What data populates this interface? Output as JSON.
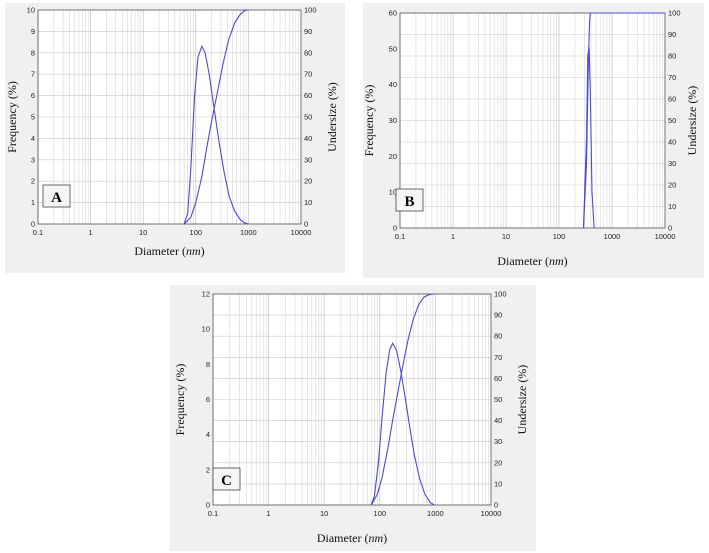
{
  "chart_data": [
    {
      "type": "line",
      "panel_label": "A",
      "xlabel": "Diameter",
      "xlabel_unit": "nm",
      "ylabel_left": "Frequency (%)",
      "ylabel_right": "Undersize (%)",
      "x_scale": "log",
      "xlim": [
        0.1,
        10000
      ],
      "ylim_left": [
        0,
        10
      ],
      "ylim_right": [
        0,
        100
      ],
      "grid": true,
      "x_ticks": [
        "0.1",
        "1",
        "10",
        "100",
        "1000",
        "10000"
      ],
      "y_left_ticks": [
        "0",
        "1",
        "2",
        "3",
        "4",
        "5",
        "6",
        "7",
        "8",
        "9",
        "10"
      ],
      "y_right_ticks": [
        "0",
        "10",
        "20",
        "30",
        "40",
        "50",
        "60",
        "70",
        "80",
        "90",
        "100"
      ],
      "series": [
        {
          "axis": "left",
          "x": [
            60,
            70,
            80,
            95,
            110,
            130,
            150,
            180,
            220,
            270,
            340,
            430,
            550,
            700,
            850,
            1000
          ],
          "y": [
            0,
            0.5,
            2.5,
            6.0,
            7.8,
            8.3,
            8.0,
            7.0,
            5.5,
            4.0,
            2.5,
            1.3,
            0.6,
            0.2,
            0.05,
            0
          ]
        },
        {
          "axis": "right",
          "x": [
            60,
            80,
            100,
            130,
            160,
            200,
            260,
            330,
            420,
            550,
            700,
            850,
            1000
          ],
          "y": [
            0,
            3,
            10,
            22,
            35,
            48,
            62,
            75,
            86,
            94,
            98,
            99.7,
            100
          ]
        }
      ]
    },
    {
      "type": "line",
      "panel_label": "B",
      "xlabel": "Diameter",
      "xlabel_unit": "nm",
      "ylabel_left": "Frequency (%)",
      "ylabel_right": "Undersize (%)",
      "x_scale": "log",
      "xlim": [
        0.1,
        10000
      ],
      "ylim_left": [
        0,
        60
      ],
      "ylim_right": [
        0,
        100
      ],
      "grid": true,
      "x_ticks": [
        "0.1",
        "1",
        "10",
        "100",
        "1000",
        "10000"
      ],
      "y_left_ticks": [
        "0",
        "10",
        "20",
        "30",
        "40",
        "50",
        "60"
      ],
      "y_right_ticks": [
        "0",
        "10",
        "20",
        "30",
        "40",
        "50",
        "60",
        "70",
        "80",
        "90",
        "100"
      ],
      "series": [
        {
          "axis": "left",
          "x": [
            290,
            330,
            350,
            370,
            390,
            420,
            460
          ],
          "y": [
            0,
            25,
            48,
            50.5,
            38,
            10,
            0
          ]
        },
        {
          "axis": "right",
          "x": [
            290,
            330,
            360,
            380,
            390,
            395,
            10000
          ],
          "y": [
            0,
            30,
            80,
            97,
            100,
            100,
            100
          ]
        }
      ]
    },
    {
      "type": "line",
      "panel_label": "C",
      "xlabel": "Diameter",
      "xlabel_unit": "nm",
      "ylabel_left": "Frequency (%)",
      "ylabel_right": "Undersize (%)",
      "x_scale": "log",
      "xlim": [
        0.1,
        10000
      ],
      "ylim_left": [
        0,
        12
      ],
      "ylim_right": [
        0,
        100
      ],
      "grid": true,
      "x_ticks": [
        "0.1",
        "1",
        "10",
        "100",
        "1000",
        "10000"
      ],
      "y_left_ticks": [
        "0",
        "2",
        "4",
        "6",
        "8",
        "10",
        "12"
      ],
      "y_right_ticks": [
        "0",
        "10",
        "20",
        "30",
        "40",
        "50",
        "60",
        "70",
        "80",
        "90",
        "100"
      ],
      "series": [
        {
          "axis": "left",
          "x": [
            70,
            80,
            95,
            110,
            130,
            150,
            170,
            200,
            240,
            290,
            350,
            420,
            520,
            650,
            800,
            950
          ],
          "y": [
            0,
            0.5,
            2.5,
            5.0,
            7.5,
            8.8,
            9.2,
            8.8,
            7.6,
            6.0,
            4.3,
            2.8,
            1.5,
            0.6,
            0.15,
            0
          ]
        },
        {
          "axis": "right",
          "x": [
            70,
            90,
            110,
            140,
            170,
            210,
            260,
            320,
            400,
            500,
            620,
            750,
            880,
            1000
          ],
          "y": [
            0,
            5,
            13,
            27,
            40,
            53,
            66,
            78,
            88,
            95,
            98.5,
            99.6,
            100,
            100
          ]
        }
      ]
    }
  ]
}
